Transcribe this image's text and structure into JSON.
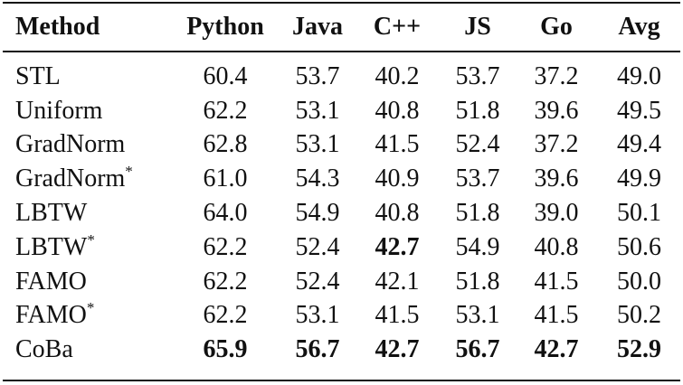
{
  "table": {
    "columns": [
      "Method",
      "Python",
      "Java",
      "C++",
      "JS",
      "Go",
      "Avg"
    ],
    "rows": [
      {
        "method": "STL",
        "method_sup": "",
        "values": [
          "60.4",
          "53.7",
          "40.2",
          "53.7",
          "37.2",
          "49.0"
        ],
        "bold": [
          false,
          false,
          false,
          false,
          false,
          false
        ]
      },
      {
        "method": "Uniform",
        "method_sup": "",
        "values": [
          "62.2",
          "53.1",
          "40.8",
          "51.8",
          "39.6",
          "49.5"
        ],
        "bold": [
          false,
          false,
          false,
          false,
          false,
          false
        ]
      },
      {
        "method": "GradNorm",
        "method_sup": "",
        "values": [
          "62.8",
          "53.1",
          "41.5",
          "52.4",
          "37.2",
          "49.4"
        ],
        "bold": [
          false,
          false,
          false,
          false,
          false,
          false
        ]
      },
      {
        "method": "GradNorm",
        "method_sup": "*",
        "values": [
          "61.0",
          "54.3",
          "40.9",
          "53.7",
          "39.6",
          "49.9"
        ],
        "bold": [
          false,
          false,
          false,
          false,
          false,
          false
        ]
      },
      {
        "method": "LBTW",
        "method_sup": "",
        "values": [
          "64.0",
          "54.9",
          "40.8",
          "51.8",
          "39.0",
          "50.1"
        ],
        "bold": [
          false,
          false,
          false,
          false,
          false,
          false
        ]
      },
      {
        "method": "LBTW",
        "method_sup": "*",
        "values": [
          "62.2",
          "52.4",
          "42.7",
          "54.9",
          "40.8",
          "50.6"
        ],
        "bold": [
          false,
          false,
          true,
          false,
          false,
          false
        ]
      },
      {
        "method": "FAMO",
        "method_sup": "",
        "values": [
          "62.2",
          "52.4",
          "42.1",
          "51.8",
          "41.5",
          "50.0"
        ],
        "bold": [
          false,
          false,
          false,
          false,
          false,
          false
        ]
      },
      {
        "method": "FAMO",
        "method_sup": "*",
        "values": [
          "62.2",
          "53.1",
          "41.5",
          "53.1",
          "41.5",
          "50.2"
        ],
        "bold": [
          false,
          false,
          false,
          false,
          false,
          false
        ]
      },
      {
        "method": "CoBa",
        "method_sup": "",
        "values": [
          "65.9",
          "56.7",
          "42.7",
          "56.7",
          "42.7",
          "52.9"
        ],
        "bold": [
          true,
          true,
          true,
          true,
          true,
          true
        ]
      }
    ]
  }
}
